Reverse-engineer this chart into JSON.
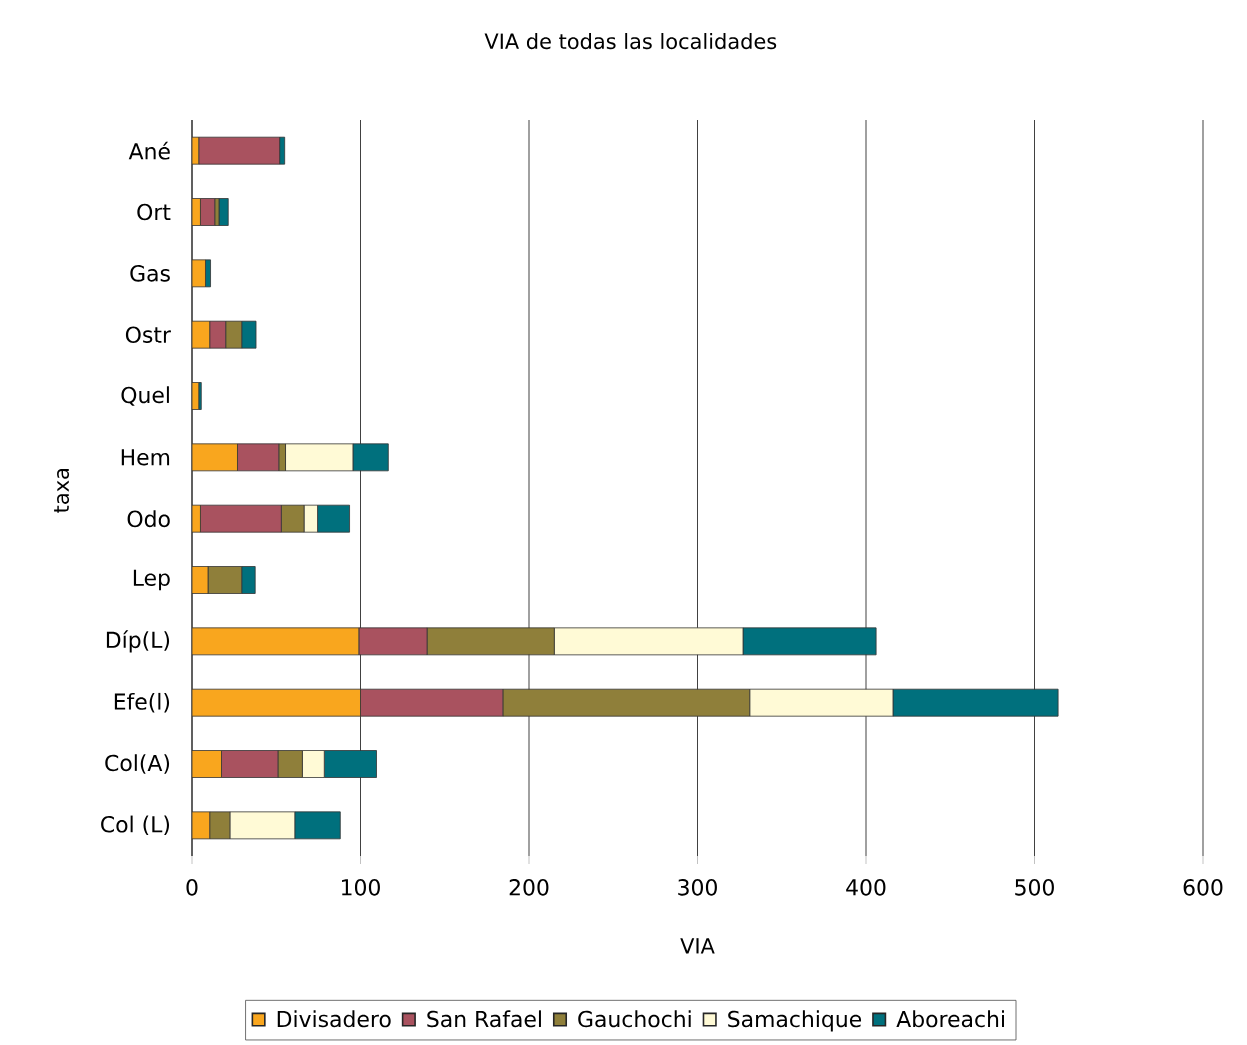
{
  "chart_data": {
    "type": "bar",
    "orientation": "horizontal",
    "stacked": true,
    "title": "VIA de todas las localidades",
    "xlabel": "VIA",
    "ylabel": "taxa",
    "categories": [
      "Ané",
      "Ort",
      "Gas",
      "Ostr",
      "Quel",
      "Hem",
      "Odo",
      "Lep",
      "Díp(L)",
      "Efe(l)",
      "Col(A)",
      "Col (L)"
    ],
    "series": [
      {
        "name": "Divisadero",
        "color": "#f9a61e",
        "values": [
          4,
          5,
          8,
          10.5,
          4,
          27,
          5,
          9.5,
          99,
          100,
          17.5,
          10.5
        ]
      },
      {
        "name": "San Rafael",
        "color": "#a9525f",
        "values": [
          48,
          8.5,
          0,
          9.5,
          0,
          24.5,
          48,
          0,
          40.5,
          84.5,
          33.5,
          0
        ]
      },
      {
        "name": "Gauchochi",
        "color": "#8f7f3a",
        "values": [
          0,
          2.5,
          0,
          9.5,
          0,
          4,
          13.5,
          20,
          75.5,
          146.5,
          14.5,
          12
        ]
      },
      {
        "name": "Samachique",
        "color": "#fffad6",
        "values": [
          0,
          0,
          0,
          0,
          0,
          40,
          8,
          0,
          112,
          85,
          13,
          38.5
        ]
      },
      {
        "name": "Aboreachi",
        "color": "#00707d",
        "values": [
          3,
          5.5,
          3,
          8.5,
          1.5,
          21,
          19,
          8,
          79,
          98,
          31,
          27
        ]
      }
    ],
    "xlim": [
      0,
      600
    ],
    "xticks": [
      0,
      100,
      200,
      300,
      400,
      500,
      600
    ],
    "grid": "x",
    "legend": "bottom"
  }
}
